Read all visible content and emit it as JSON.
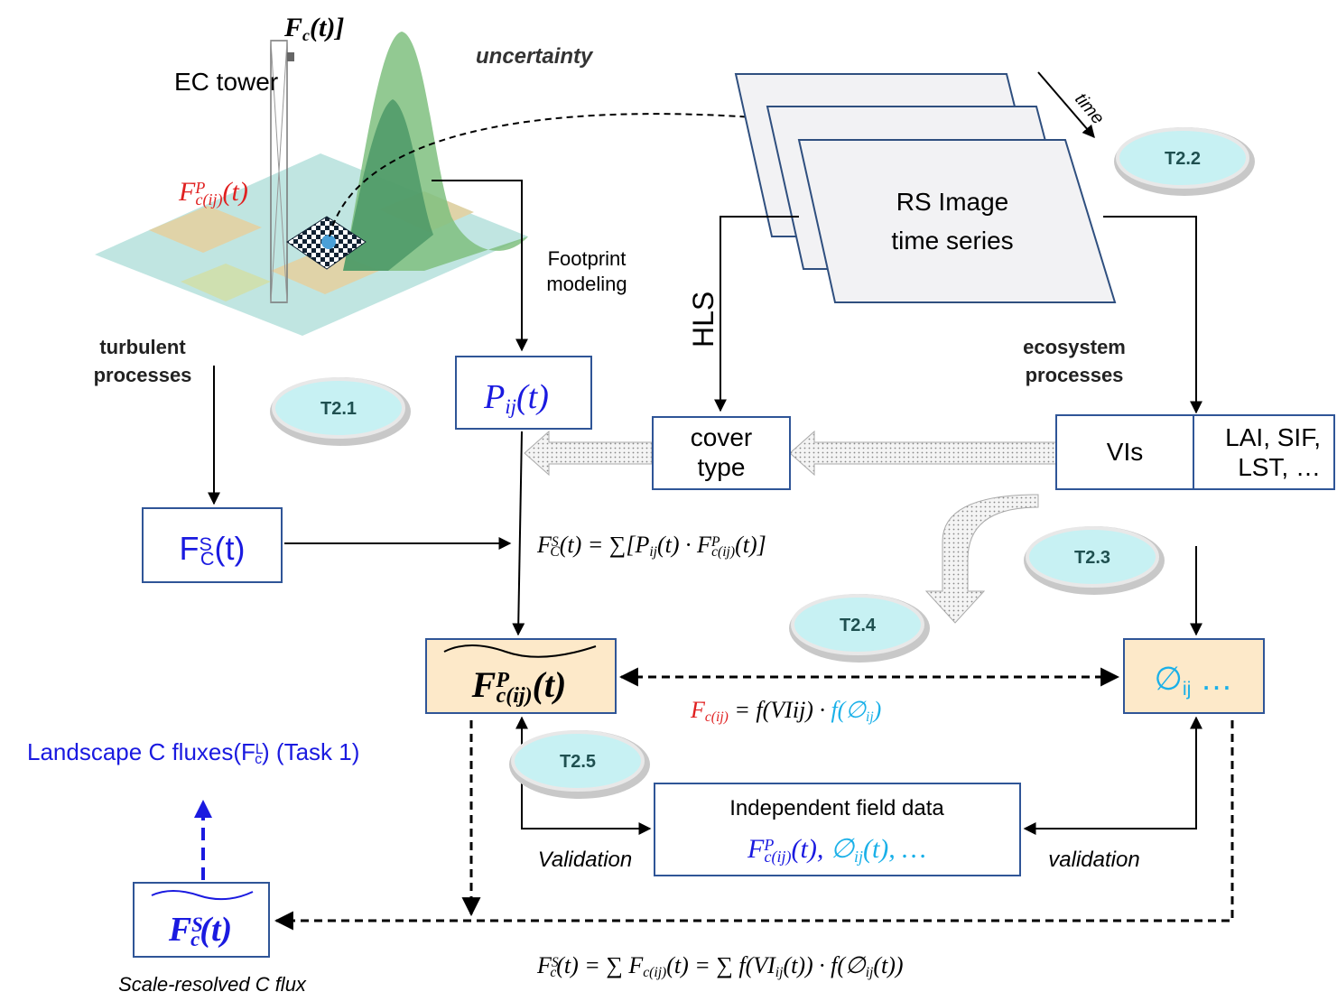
{
  "tower_flux": [
    {
      "text": "F",
      "sub": "c"
    },
    {
      "text": "(t)]"
    }
  ],
  "ec_tower": "EC tower",
  "uncertainty": "uncertainty",
  "point_flux": [
    {
      "text": "F",
      "sup": "P",
      "sub": "c(ij)"
    },
    {
      "text": "(t)"
    }
  ],
  "time": "time",
  "rs_image": [
    "RS Image",
    "time series"
  ],
  "footprint_modeling": [
    "Footprint",
    "modeling"
  ],
  "hls": "HLS",
  "turbulent_processes": [
    "turbulent",
    "processes"
  ],
  "ecosystem_processes": [
    "ecosystem",
    "processes"
  ],
  "tasks": {
    "t21": "T2.1",
    "t22": "T2.2",
    "t23": "T2.3",
    "t24": "T2.4",
    "t25": "T2.5"
  },
  "footprint_box": [
    {
      "text": "P",
      "sub": "ij"
    },
    {
      "text": "(t)"
    }
  ],
  "cover_type": [
    "cover",
    "type"
  ],
  "vis": "VIs",
  "rs_products": [
    "LAI, SIF,",
    "LST, …"
  ],
  "site_flux_box": [
    {
      "text": "F",
      "sup": "S",
      "sub": "C"
    },
    {
      "text": "(t)"
    }
  ],
  "footprint_equation": [
    {
      "text": "F",
      "sup": "S",
      "sub": "C"
    },
    {
      "text": "(t) = ∑[P",
      "sub": "ij"
    },
    {
      "text": "(t) · F",
      "sup": "P",
      "sub": "c(ij)"
    },
    {
      "text": "(t)]"
    }
  ],
  "pixel_flux_box": [
    {
      "text": "F",
      "sup": "P",
      "sub": "c(ij)"
    },
    {
      "text": "(t)"
    }
  ],
  "param_box": [
    {
      "text": "∅",
      "sub": "ij"
    },
    {
      "text": " …"
    }
  ],
  "link_equation": [
    {
      "text": "F",
      "sub": "c(ij)",
      "color": "#e02020"
    },
    {
      "text": " = f(VIij) · ",
      "color": "#000000"
    },
    {
      "text": "f(∅",
      "sub": "ij",
      "color": "#1ab0e8"
    },
    {
      "text": ")",
      "color": "#1ab0e8"
    }
  ],
  "landscape_flux": [
    {
      "text": "Landscape C fluxes("
    },
    {
      "text": "F",
      "sup": "L",
      "sub": "c"
    },
    {
      "text": ") (Task 1)"
    }
  ],
  "field_data": {
    "title": "Independent field data",
    "formula": [
      {
        "text": "F",
        "sup": "P",
        "sub": "c(ij)",
        "color": "#1a1ae0"
      },
      {
        "text": "(t), ",
        "color": "#1a1ae0"
      },
      {
        "text": "∅",
        "sub": "ij",
        "color": "#1ab0e8"
      },
      {
        "text": "(t), …",
        "color": "#1ab0e8"
      }
    ]
  },
  "validation_left": "Validation",
  "validation_right": "validation",
  "scale_box": [
    {
      "text": "F",
      "sup": "S",
      "sub": "c"
    },
    {
      "text": "(t)"
    }
  ],
  "scale_caption": "Scale-resolved C flux",
  "bottom_equation": [
    {
      "text": "F",
      "sup": "S",
      "sub": "c"
    },
    {
      "text": "(t) = ∑ F",
      "sub": "c(ij)"
    },
    {
      "text": "(t) = ∑ f(VI",
      "sub": "ij"
    },
    {
      "text": "(t)) · f(∅",
      "sub": "ij"
    },
    {
      "text": "(t))"
    }
  ]
}
